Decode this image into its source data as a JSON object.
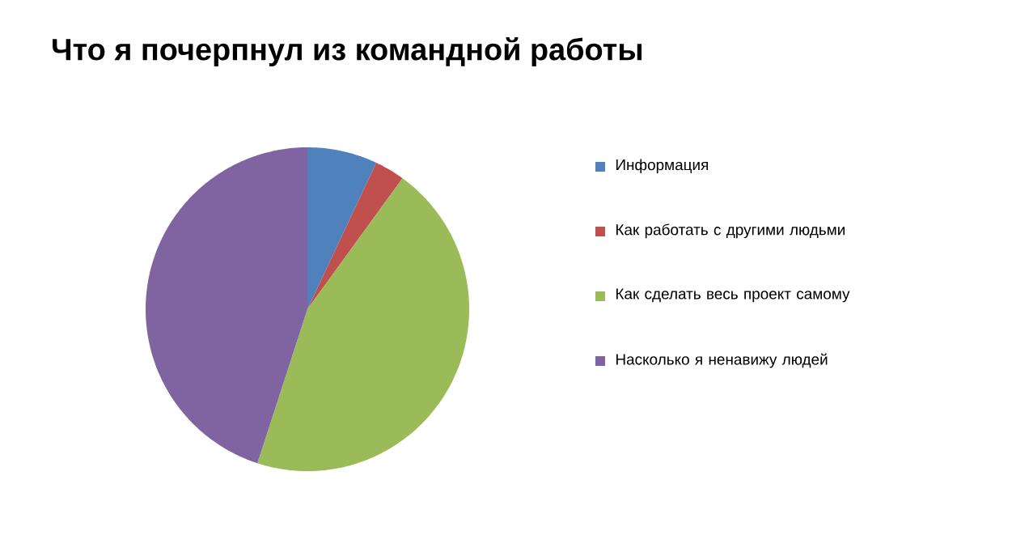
{
  "chart_data": {
    "type": "pie",
    "title": "Что я почерпнул из командной работы",
    "categories": [
      "Информация",
      "Как работать с другими людьми",
      "Как сделать весь проект самому",
      "Насколько я ненавижу людей"
    ],
    "values": [
      7,
      3,
      45,
      45
    ],
    "colors": [
      "#4f81bd",
      "#c0504d",
      "#9bbb59",
      "#8064a2"
    ],
    "legend": "right"
  }
}
